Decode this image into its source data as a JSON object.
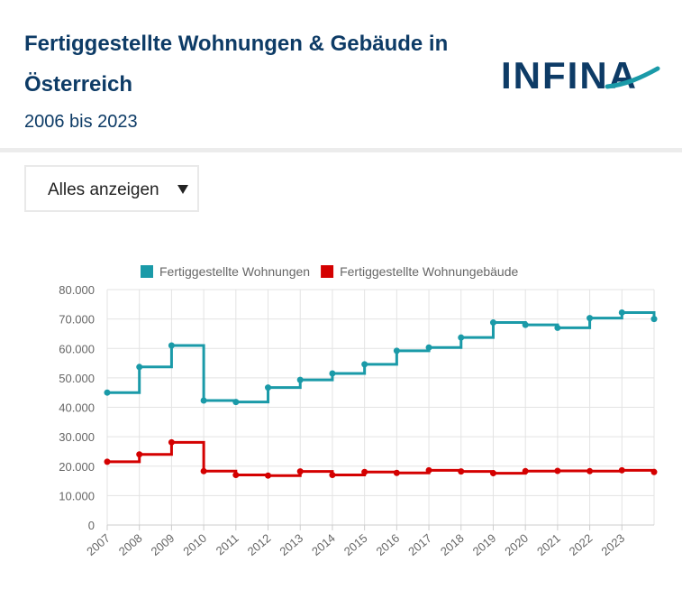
{
  "header": {
    "title": "Fertiggestellte Wohnungen & Gebäude in Österreich",
    "subtitle": "2006 bis 2023",
    "logo_text": "INFINA"
  },
  "filter": {
    "selected": "Alles anzeigen",
    "icon": "caret-down-icon"
  },
  "chart_data": {
    "type": "line",
    "step": true,
    "x_tick_labels": [
      "2007",
      "2008",
      "2009",
      "2010",
      "2011",
      "2012",
      "2013",
      "2014",
      "2015",
      "2016",
      "2017",
      "2018",
      "2019",
      "2020",
      "2021",
      "2022",
      "2023"
    ],
    "y_tick_labels": [
      "0",
      "10.000",
      "20.000",
      "30.000",
      "40.000",
      "50.000",
      "60.000",
      "70.000",
      "80.000"
    ],
    "ylim": [
      0,
      80000
    ],
    "grid": true,
    "legend_position": "top",
    "series": [
      {
        "name": "Fertiggestellte Wohnungen",
        "color": "#1a9aa8",
        "values": [
          45000,
          53700,
          61000,
          42300,
          41800,
          46700,
          49300,
          51500,
          54600,
          59200,
          60300,
          63700,
          68800,
          68000,
          67000,
          70300,
          72200,
          70000
        ]
      },
      {
        "name": "Fertiggestellte Wohnungebäude",
        "color": "#d40000",
        "values": [
          21500,
          24000,
          28100,
          18300,
          17000,
          16800,
          18200,
          17000,
          18000,
          17700,
          18600,
          18200,
          17600,
          18300,
          18400,
          18300,
          18600,
          18000
        ]
      }
    ]
  }
}
